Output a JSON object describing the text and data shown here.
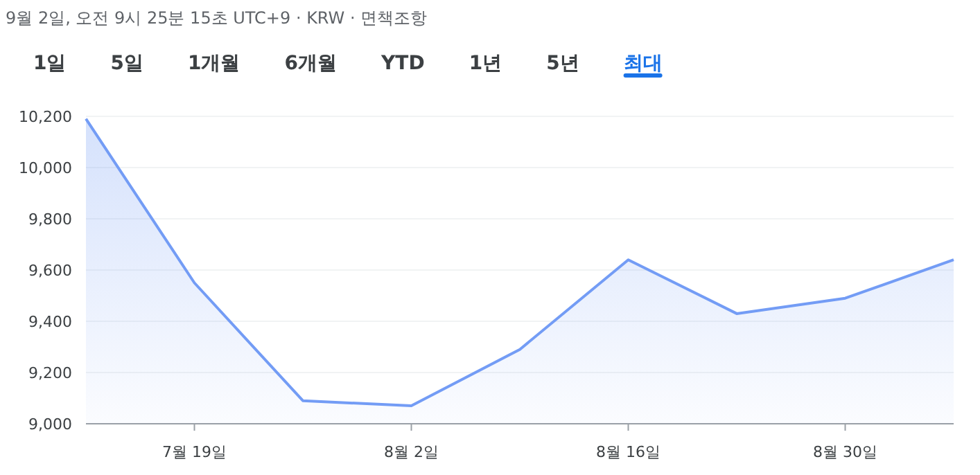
{
  "chart_data": {
    "type": "area",
    "title": "9월 2일, 오전 9시 25분 15초 UTC+9 · KRW · 면책조항",
    "annotations": [
      "1일",
      "5일",
      "1개월",
      "6개월",
      "YTD",
      "1년",
      "5년",
      "최대"
    ],
    "categories": [
      null,
      "7월 19일",
      null,
      "8월 2일",
      null,
      "8월 16일",
      null,
      "8월 30일",
      null
    ],
    "series": [
      {
        "color": "#739cf5",
        "values": [
          10190,
          9550,
          9090,
          9070,
          9290,
          9640,
          9430,
          9490,
          9640
        ]
      }
    ],
    "ylim": [
      9000,
      10200
    ],
    "yticks": [
      {
        "value": 9000,
        "label": "9,000"
      },
      {
        "value": 9200,
        "label": "9,200"
      },
      {
        "value": 9400,
        "label": "9,400"
      },
      {
        "value": 9600,
        "label": "9,600"
      },
      {
        "value": 9800,
        "label": "9,800"
      },
      {
        "value": 10000,
        "label": "10,000"
      },
      {
        "value": 10200,
        "label": "10,200"
      }
    ],
    "grid": "y",
    "marker": "none",
    "line_style": "solid"
  }
}
